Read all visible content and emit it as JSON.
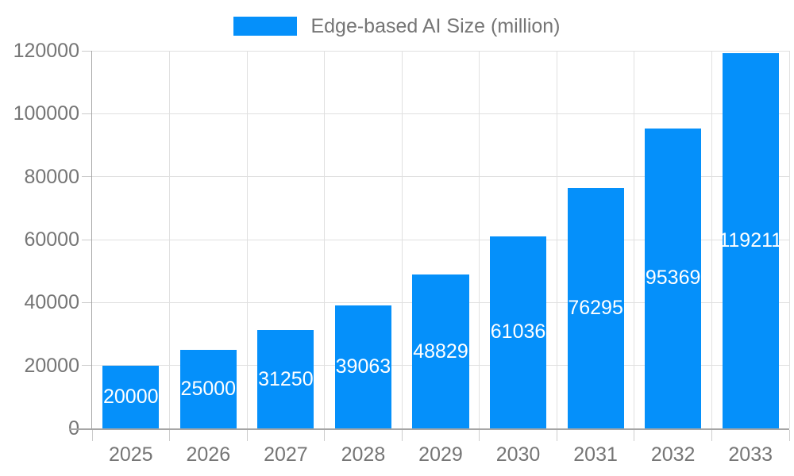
{
  "chart_data": {
    "type": "bar",
    "title": "",
    "legend_label": "Edge-based AI Size (million)",
    "legend_position": "top",
    "categories": [
      "2025",
      "2026",
      "2027",
      "2028",
      "2029",
      "2030",
      "2031",
      "2032",
      "2033"
    ],
    "series": [
      {
        "name": "Edge-based AI Size (million)",
        "values": [
          20000,
          25000,
          31250,
          39063,
          48829,
          61036,
          76295,
          95369,
          119211
        ]
      }
    ],
    "value_labels": [
      "20000",
      "25000",
      "31250",
      "39063",
      "48829",
      "61036",
      "76295",
      "95369",
      "119211"
    ],
    "value_label_position": "inside-center",
    "xlabel": "",
    "ylabel": "",
    "ylim": [
      0,
      120000
    ],
    "yticks": [
      0,
      20000,
      40000,
      60000,
      80000,
      100000,
      120000
    ],
    "ytick_labels": [
      "0",
      "20000",
      "40000",
      "60000",
      "80000",
      "100000",
      "120000"
    ],
    "grid": true,
    "colors": {
      "bar": "#0590fa",
      "grid": "#e0e0e0",
      "axis_line": "#a6a6a6",
      "tick": "#cccccc",
      "axis_text": "#757575",
      "value_label": "#ffffff",
      "background": "#ffffff"
    }
  }
}
